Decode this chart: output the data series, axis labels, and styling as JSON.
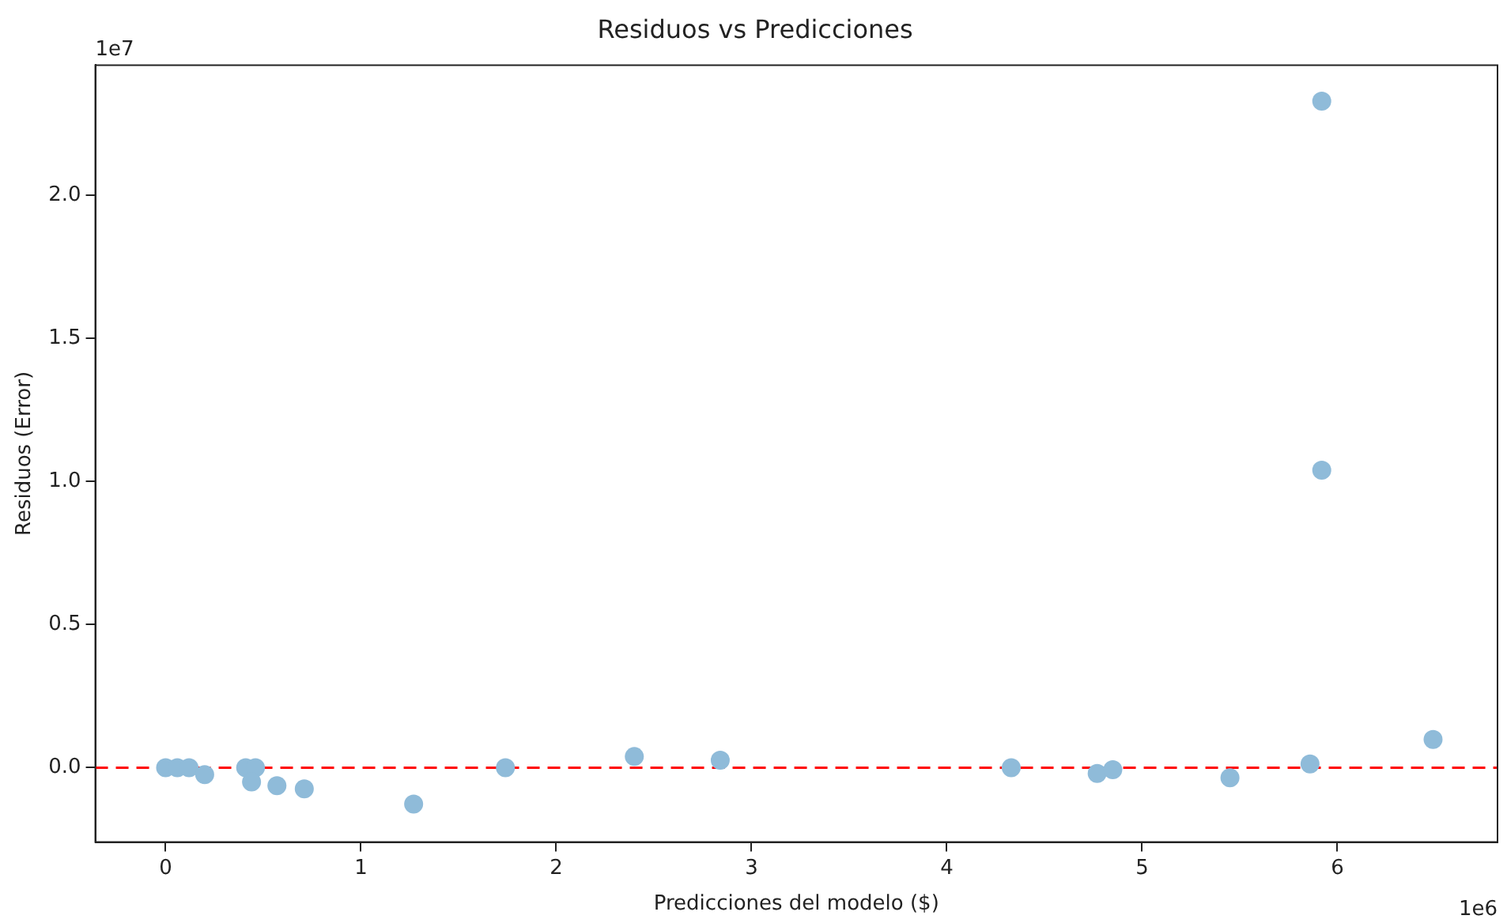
{
  "chart_data": {
    "type": "scatter",
    "title": "Residuos vs Predicciones",
    "xlabel": "Predicciones del modelo ($)",
    "ylabel": "Residuos (Error)",
    "x": [
      0,
      0.06,
      0.12,
      0.2,
      0.41,
      0.46,
      0.44,
      0.57,
      0.71,
      1.27,
      1.74,
      2.4,
      2.84,
      4.33,
      4.77,
      4.85,
      5.45,
      5.86,
      6.49,
      5.92,
      5.92
    ],
    "series": [
      {
        "color": "#8fbbd9",
        "values": [
          0,
          0,
          0,
          -0.024,
          0,
          0,
          -0.05,
          -0.063,
          -0.074,
          -0.127,
          0,
          0.039,
          0.026,
          0,
          -0.02,
          -0.007,
          -0.035,
          0.013,
          0.099,
          2.33,
          1.04
        ]
      }
    ],
    "xlim": [
      -0.36,
      6.82
    ],
    "ylim": [
      -0.26,
      2.456
    ],
    "xticks": [
      0,
      1,
      2,
      3,
      4,
      5,
      6
    ],
    "yticks": [
      {
        "value": 0,
        "label": "0.0"
      },
      0.5,
      {
        "value": 1,
        "label": "1.0"
      },
      1.5,
      {
        "value": 2,
        "label": "2.0"
      }
    ],
    "ref_lines": [
      {
        "axis": "y",
        "value": 0,
        "color": "#ff0000",
        "line_style": "dashed"
      }
    ],
    "annotations": [
      "1e7",
      "1e6"
    ],
    "marker": "circle",
    "grid": false,
    "legend": false
  }
}
